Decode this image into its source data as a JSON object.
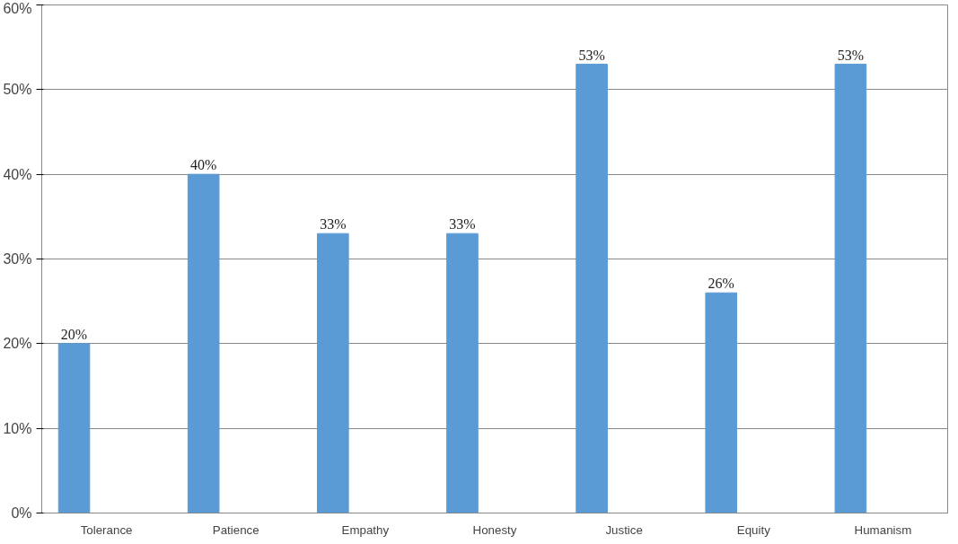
{
  "chart_data": {
    "type": "bar",
    "categories": [
      "Tolerance",
      "Patience",
      "Empathy",
      "Honesty",
      "Justice",
      "Equity",
      "Humanism"
    ],
    "values": [
      20,
      40,
      33,
      33,
      53,
      26,
      53
    ],
    "value_labels": [
      "20%",
      "40%",
      "33%",
      "33%",
      "53%",
      "26%",
      "53%"
    ],
    "color": "#5b9bd5",
    "ylim": [
      0,
      60
    ],
    "yticks": [
      {
        "value": 0,
        "label": "0%"
      },
      {
        "value": 10,
        "label": "10%"
      },
      {
        "value": 20,
        "label": "20%"
      },
      {
        "value": 30,
        "label": "30%"
      },
      {
        "value": 40,
        "label": "40%"
      },
      {
        "value": 50,
        "label": "50%"
      },
      {
        "value": 60,
        "label": "60%"
      }
    ],
    "grid": "y"
  }
}
